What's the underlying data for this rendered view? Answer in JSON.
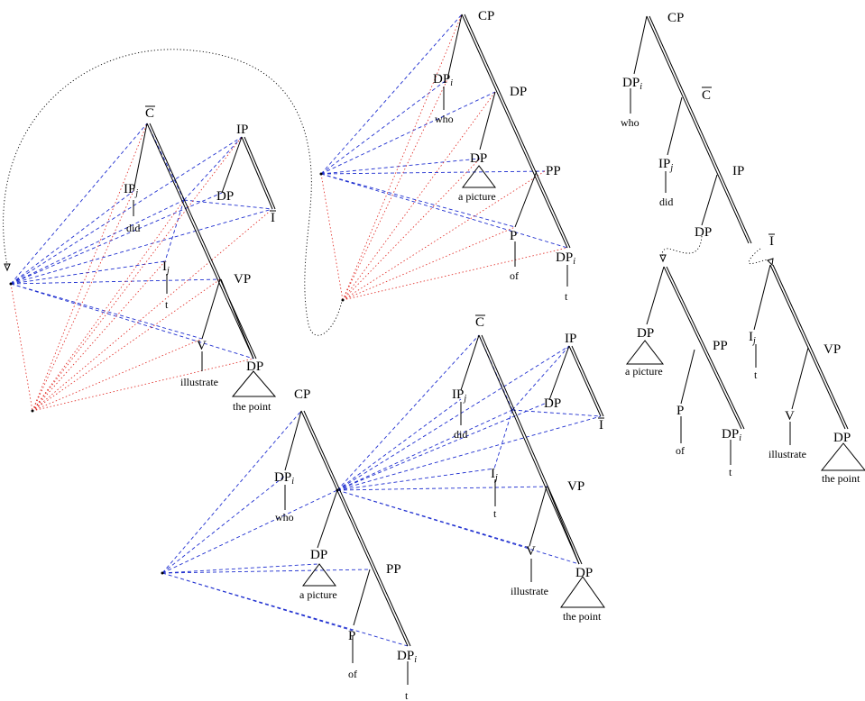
{
  "labels": {
    "cp": "CP",
    "cbar": "C",
    "ip": "IP",
    "ibar": "I",
    "i": "I",
    "vp": "VP",
    "v": "V",
    "pp": "PP",
    "p": "P",
    "dp": "DP",
    "sub_i": "i",
    "sub_j": "j"
  },
  "words": {
    "who": "who",
    "did": "did",
    "trace": "t",
    "illustrate": "illustrate",
    "the_point": "the point",
    "a_picture": "a picture",
    "of": "of"
  }
}
